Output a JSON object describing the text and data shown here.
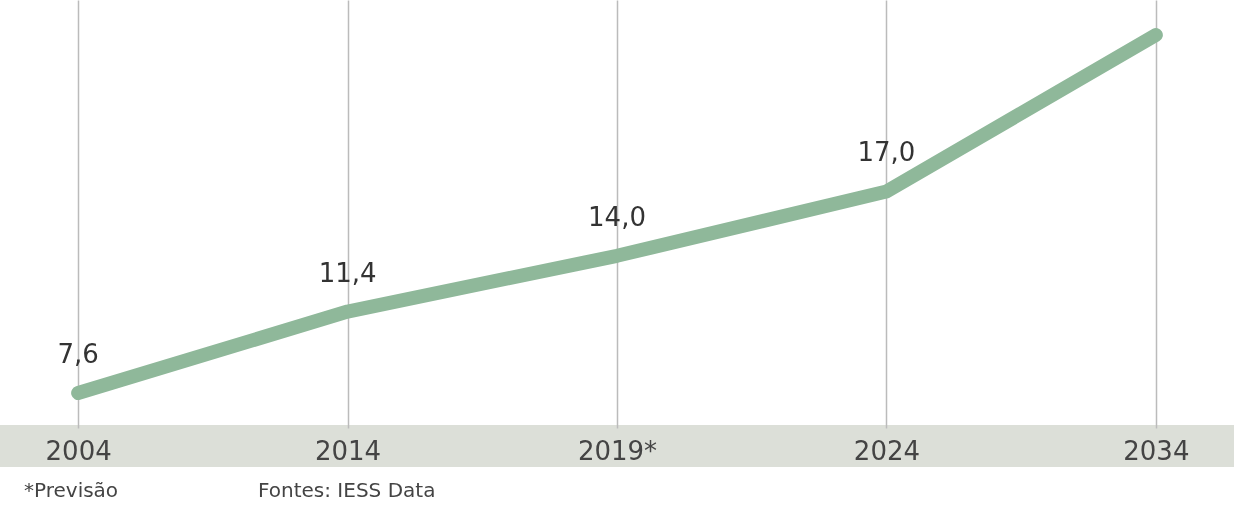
{
  "chart_data": {
    "type": "line",
    "categories": [
      "2004",
      "2014",
      "2019*",
      "2024",
      "2034"
    ],
    "series": [
      {
        "color": "#8fb89a",
        "values": [
          7.6,
          11.4,
          14.0,
          17.0,
          24.3
        ],
        "value_labels": [
          "7,6",
          "11,4",
          "14,0",
          "17,0",
          null
        ]
      }
    ],
    "grid": "x",
    "marker": "none",
    "line_style": "solid",
    "annotations": [
      "*Previsão",
      "Fontes: IESS Data"
    ]
  }
}
